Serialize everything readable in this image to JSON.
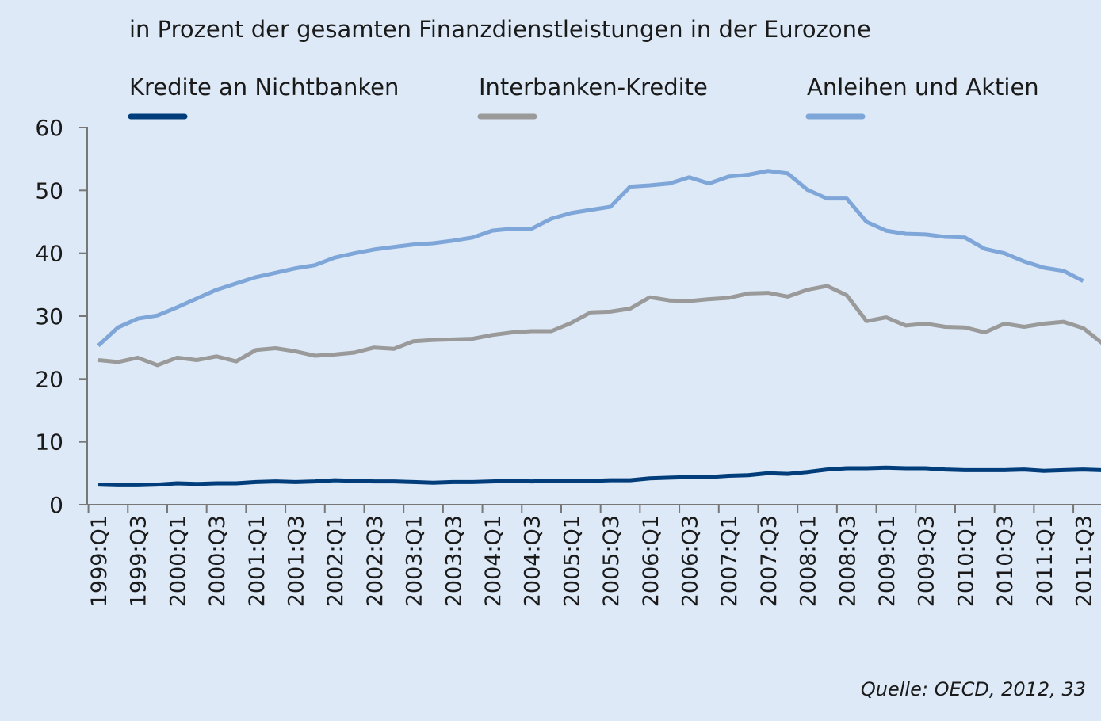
{
  "chart_data": {
    "type": "line",
    "subtitle": "in Prozent der gesamten Finanzdienstleistungen in der Eurozone",
    "source": "Quelle: OECD, 2012, 33",
    "categories": [
      "1999:Q1",
      null,
      "1999:Q3",
      null,
      "2000:Q1",
      null,
      "2000:Q3",
      null,
      "2001:Q1",
      null,
      "2001:Q3",
      null,
      "2002:Q1",
      null,
      "2002:Q3",
      null,
      "2003:Q1",
      null,
      "2003:Q3",
      null,
      "2004:Q1",
      null,
      "2004:Q3",
      null,
      "2005:Q1",
      null,
      "2005:Q3",
      null,
      "2006:Q1",
      null,
      "2006:Q3",
      null,
      "2007:Q1",
      null,
      "2007:Q3",
      null,
      "2008:Q1",
      null,
      "2008:Q3",
      null,
      "2009:Q1",
      null,
      "2009:Q3",
      null,
      "2010:Q1",
      null,
      "2010:Q3",
      null,
      "2011:Q1",
      null,
      "2011:Q3",
      null
    ],
    "series": [
      {
        "name": "Kredite an Nichtbanken",
        "color": "#003d7a",
        "values": [
          3.2,
          3.1,
          3.1,
          3.2,
          3.4,
          3.3,
          3.4,
          3.4,
          3.6,
          3.7,
          3.6,
          3.7,
          3.9,
          3.8,
          3.7,
          3.7,
          3.6,
          3.5,
          3.6,
          3.6,
          3.7,
          3.8,
          3.7,
          3.8,
          3.8,
          3.8,
          3.9,
          3.9,
          4.2,
          4.3,
          4.4,
          4.4,
          4.6,
          4.7,
          5.0,
          4.9,
          5.2,
          5.6,
          5.8,
          5.8,
          5.9,
          5.8,
          5.8,
          5.6,
          5.5,
          5.5,
          5.5,
          5.6,
          5.4,
          5.5,
          5.6,
          5.5
        ]
      },
      {
        "name": "Interbanken-Kredite",
        "color": "#9a9a9a",
        "values": [
          23.0,
          22.7,
          23.4,
          22.2,
          23.4,
          23.0,
          23.6,
          22.8,
          24.6,
          24.9,
          24.4,
          23.7,
          23.9,
          24.2,
          25.0,
          24.8,
          26.0,
          26.2,
          26.3,
          26.4,
          27.0,
          27.4,
          27.6,
          27.6,
          28.9,
          30.6,
          30.7,
          31.2,
          33.0,
          32.5,
          32.4,
          32.7,
          32.9,
          33.6,
          33.7,
          33.1,
          34.2,
          34.8,
          33.3,
          29.2,
          29.8,
          28.5,
          28.8,
          28.3,
          28.2,
          27.4,
          28.8,
          28.3,
          28.8,
          29.1,
          28.1,
          25.6
        ]
      },
      {
        "name": "Anleihen und Aktien",
        "color": "#7fa6d9",
        "values": [
          25.3,
          28.2,
          29.6,
          30.1,
          31.4,
          32.8,
          34.2,
          35.2,
          36.2,
          36.9,
          37.6,
          38.1,
          39.3,
          40.0,
          40.6,
          41.0,
          41.4,
          41.6,
          42.0,
          42.5,
          43.6,
          43.9,
          43.9,
          45.5,
          46.4,
          46.9,
          47.4,
          50.6,
          50.8,
          51.1,
          52.1,
          51.1,
          52.2,
          52.5,
          53.1,
          52.7,
          50.1,
          48.7,
          48.7,
          45.0,
          43.6,
          43.1,
          43.0,
          42.6,
          42.5,
          40.7,
          40.0,
          38.7,
          37.7,
          37.2,
          35.6,
          null
        ]
      }
    ],
    "ylim": [
      0,
      60
    ],
    "yticks": [
      0,
      10,
      20,
      30,
      40,
      50,
      60
    ]
  }
}
